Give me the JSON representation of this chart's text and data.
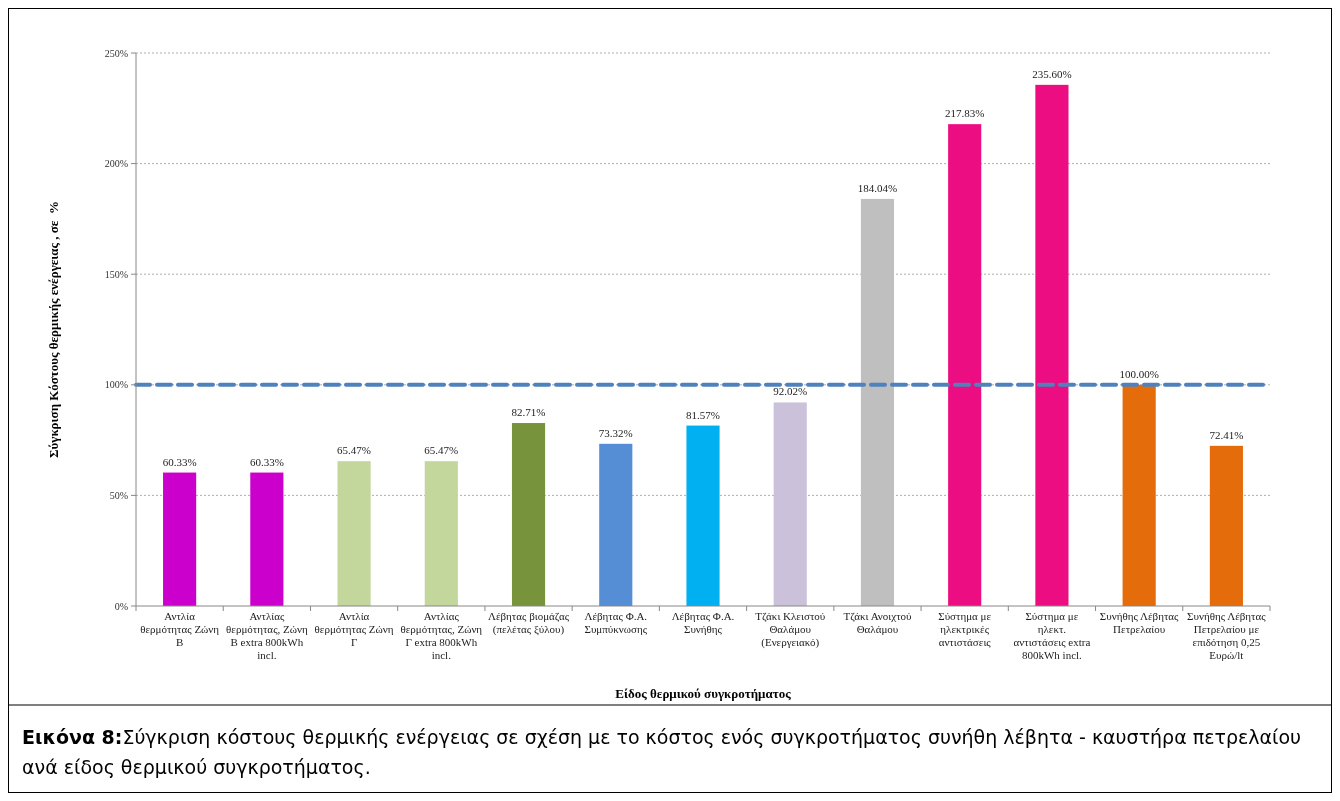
{
  "chart_data": {
    "type": "bar",
    "xlabel": "Είδος θερμικού συγκροτήματος",
    "ylabel": "Σύγκριση Κόστους θερμικής ενέργειας , σε  %",
    "categories": [
      "Αντλία θερμότητας Ζώνη Β",
      "Αντλίας θερμότητας, Ζώνη Β extra 800kWh incl.",
      "Αντλία θερμότητας Ζώνη Γ",
      "Αντλίας θερμότητας, Ζώνη Γ extra 800kWh incl.",
      "Λέβητας βιομάζας (πελέτας ξύλου)",
      "Λέβητας Φ.Α. Συμπύκνωσης",
      "Λέβητας Φ.Α. Συνήθης",
      "Τζάκι Κλειστού Θαλάμου (Ενεργειακό)",
      "Τζάκι Ανοιχτού Θαλάμου",
      "Σύστημα με ηλεκτρικές αντιστάσεις",
      "Σύστημα με ηλεκτ. αντιστάσεις extra 800kWh incl.",
      "Συνήθης Λέβητας Πετρελαίου",
      "Συνήθης Λέβητας Πετρελαίου με επιδότηση 0,25 Ευρώ/lt"
    ],
    "values": [
      60.33,
      60.33,
      65.47,
      65.47,
      82.71,
      73.32,
      81.57,
      92.02,
      184.04,
      217.83,
      235.6,
      100,
      72.41
    ],
    "value_labels": [
      "60.33%",
      "60.33%",
      "65.47%",
      "65.47%",
      "82.71%",
      "73.32%",
      "81.57%",
      "92.02%",
      "184.04%",
      "217.83%",
      "235.60%",
      "100.00%",
      "72.41%"
    ],
    "colors": [
      "#cc00cc",
      "#cc00cc",
      "#c3d69b",
      "#c3d69b",
      "#77933c",
      "#558ed5",
      "#00b0f0",
      "#ccc1da",
      "#bfbfbf",
      "#ec0d83",
      "#ec0d83",
      "#e46c0a",
      "#e46c0a"
    ],
    "ylim": [
      0,
      250
    ],
    "yticks": [
      {
        "value": 0,
        "label": "0%"
      },
      {
        "value": 50,
        "label": "50%"
      },
      {
        "value": 100,
        "label": "100%"
      },
      {
        "value": 150,
        "label": "150%"
      },
      {
        "value": 200,
        "label": "200%"
      },
      {
        "value": 250,
        "label": "250%"
      }
    ],
    "grid": "y",
    "ref_lines": [
      {
        "axis": "y",
        "value": 100,
        "color": "#4f81bd",
        "line_style": "dashed"
      }
    ],
    "annotations": [
      "Εικόνα 8:Σύγκριση κόστους θερμικής ενέργειας σε σχέση με το κόστος ενός συγκροτήματος συνήθη λέβητα - καυστήρα πετρελαίου ανά είδος θερμικού συγκροτήματος."
    ]
  }
}
